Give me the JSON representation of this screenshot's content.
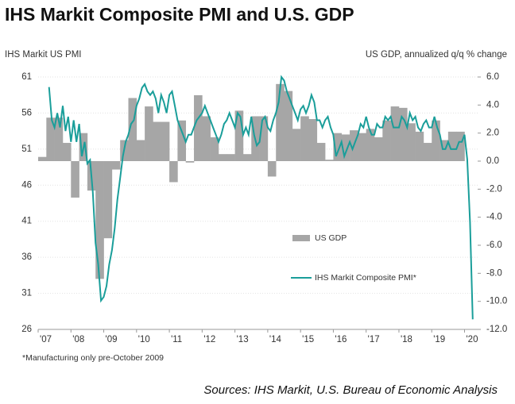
{
  "chart_data": {
    "type": "combo",
    "title": "IHS Markit Composite PMI and U.S. GDP",
    "y_label": "IHS Markit US PMI",
    "y2_label": "US GDP, annualized q/q % change",
    "footnote": "*Manufacturing only pre-October 2009",
    "source": "Sources: IHS Markit, U.S. Bureau of Economic Analysis",
    "xlim": [
      2007,
      2020.4
    ],
    "xticks": [
      {
        "value": 2007,
        "label": "'07"
      },
      {
        "value": 2008,
        "label": "'08"
      },
      {
        "value": 2009,
        "label": "'09"
      },
      {
        "value": 2010,
        "label": "'10"
      },
      {
        "value": 2011,
        "label": "'11"
      },
      {
        "value": 2012,
        "label": "'12"
      },
      {
        "value": 2013,
        "label": "'13"
      },
      {
        "value": 2014,
        "label": "'14"
      },
      {
        "value": 2015,
        "label": "'15"
      },
      {
        "value": 2016,
        "label": "'16"
      },
      {
        "value": 2017,
        "label": "'17"
      },
      {
        "value": 2018,
        "label": "'18"
      },
      {
        "value": 2019,
        "label": "'19"
      },
      {
        "value": 2020,
        "label": "'20"
      }
    ],
    "ylim": [
      26,
      61
    ],
    "yticks": [
      26,
      31,
      36,
      41,
      46,
      51,
      56,
      61
    ],
    "y2lim": [
      -12,
      6
    ],
    "y2ticks": [
      {
        "value": 6,
        "label": "6.0"
      },
      {
        "value": 4,
        "label": "4.0"
      },
      {
        "value": 2,
        "label": "2.0"
      },
      {
        "value": 0,
        "label": "0.0"
      },
      {
        "value": -2,
        "label": "-2.0"
      },
      {
        "value": -4,
        "label": "-4.0"
      },
      {
        "value": -6,
        "label": "-6.0"
      },
      {
        "value": -8,
        "label": "-8.0"
      },
      {
        "value": -10,
        "label": "-10.0"
      },
      {
        "value": -12,
        "label": "-12.0"
      }
    ],
    "bar_width": 0.25,
    "series": [
      {
        "name": "US GDP",
        "type": "bar",
        "axis": "y2",
        "color": "#a6a6a6",
        "x": [
          2007,
          2007.25,
          2007.5,
          2007.75,
          2008,
          2008.25,
          2008.5,
          2008.75,
          2009,
          2009.25,
          2009.5,
          2009.75,
          2010,
          2010.25,
          2010.5,
          2010.75,
          2011,
          2011.25,
          2011.5,
          2011.75,
          2012,
          2012.25,
          2012.5,
          2012.75,
          2013,
          2013.25,
          2013.5,
          2013.75,
          2014,
          2014.25,
          2014.5,
          2014.75,
          2015,
          2015.25,
          2015.5,
          2015.75,
          2016,
          2016.25,
          2016.5,
          2016.75,
          2017,
          2017.25,
          2017.5,
          2017.75,
          2018,
          2018.25,
          2018.5,
          2018.75,
          2019,
          2019.25,
          2019.5,
          2019.75
        ],
        "values": [
          0.3,
          3.1,
          3.1,
          1.3,
          -2.6,
          2.0,
          -2.1,
          -8.4,
          -5.5,
          -0.6,
          1.5,
          4.5,
          1.5,
          3.9,
          2.8,
          2.8,
          -1.5,
          2.9,
          -0.1,
          4.7,
          3.2,
          1.7,
          0.5,
          0.5,
          3.6,
          0.5,
          3.2,
          3.2,
          -1.1,
          5.5,
          5.0,
          2.3,
          3.2,
          3.0,
          1.3,
          0.1,
          2.0,
          1.9,
          2.2,
          2.0,
          2.3,
          1.7,
          2.9,
          3.9,
          3.8,
          2.7,
          2.1,
          1.3,
          2.9,
          1.5,
          2.1,
          2.1
        ]
      },
      {
        "name": "IHS Markit Composite PMI*",
        "type": "line",
        "color": "#1a9e9a",
        "x": [
          2007.333,
          2007.417,
          2007.5,
          2007.583,
          2007.667,
          2007.75,
          2007.833,
          2007.917,
          2008,
          2008.083,
          2008.167,
          2008.25,
          2008.333,
          2008.417,
          2008.5,
          2008.583,
          2008.667,
          2008.75,
          2008.833,
          2008.917,
          2009,
          2009.083,
          2009.167,
          2009.25,
          2009.333,
          2009.417,
          2009.5,
          2009.583,
          2009.667,
          2009.75,
          2009.833,
          2009.917,
          2010,
          2010.083,
          2010.167,
          2010.25,
          2010.333,
          2010.417,
          2010.5,
          2010.583,
          2010.667,
          2010.75,
          2010.833,
          2010.917,
          2011,
          2011.083,
          2011.167,
          2011.25,
          2011.333,
          2011.417,
          2011.5,
          2011.583,
          2011.667,
          2011.75,
          2011.833,
          2011.917,
          2012,
          2012.083,
          2012.167,
          2012.25,
          2012.333,
          2012.417,
          2012.5,
          2012.583,
          2012.667,
          2012.75,
          2012.833,
          2012.917,
          2013,
          2013.083,
          2013.167,
          2013.25,
          2013.333,
          2013.417,
          2013.5,
          2013.583,
          2013.667,
          2013.75,
          2013.833,
          2013.917,
          2014,
          2014.083,
          2014.167,
          2014.25,
          2014.333,
          2014.417,
          2014.5,
          2014.583,
          2014.667,
          2014.75,
          2014.833,
          2014.917,
          2015,
          2015.083,
          2015.167,
          2015.25,
          2015.333,
          2015.417,
          2015.5,
          2015.583,
          2015.667,
          2015.75,
          2015.833,
          2015.917,
          2016,
          2016.083,
          2016.167,
          2016.25,
          2016.333,
          2016.417,
          2016.5,
          2016.583,
          2016.667,
          2016.75,
          2016.833,
          2016.917,
          2017,
          2017.083,
          2017.167,
          2017.25,
          2017.333,
          2017.417,
          2017.5,
          2017.583,
          2017.667,
          2017.75,
          2017.833,
          2017.917,
          2018,
          2018.083,
          2018.167,
          2018.25,
          2018.333,
          2018.417,
          2018.5,
          2018.583,
          2018.667,
          2018.75,
          2018.833,
          2018.917,
          2019,
          2019.083,
          2019.167,
          2019.25,
          2019.333,
          2019.417,
          2019.5,
          2019.583,
          2019.667,
          2019.75,
          2019.833,
          2019.917,
          2020,
          2020.083,
          2020.167,
          2020.25
        ],
        "values": [
          59.6,
          55,
          54,
          56,
          54,
          57,
          53.5,
          55.5,
          52,
          55,
          52,
          54.5,
          50,
          52,
          49,
          49.5,
          45,
          38,
          35,
          30,
          30.5,
          32,
          35,
          37,
          40,
          44,
          47,
          50,
          52,
          53,
          54.5,
          55,
          57,
          58,
          59.5,
          60,
          59,
          58.5,
          59,
          58,
          56,
          58.5,
          57.5,
          56,
          58.5,
          59,
          57,
          55,
          54,
          53,
          52,
          53,
          53,
          54,
          55,
          55.5,
          56,
          57,
          56,
          55,
          54,
          53,
          52,
          53,
          54.5,
          55,
          56,
          55,
          54,
          56,
          55.5,
          53,
          54,
          53,
          55.5,
          53,
          51.5,
          52,
          55,
          55.5,
          54,
          53.5,
          55,
          56,
          57.5,
          61,
          60.5,
          59,
          58,
          57,
          56,
          55,
          56.5,
          57,
          56,
          57,
          58.5,
          57.5,
          55,
          55,
          54,
          55,
          55.5,
          54,
          53,
          50,
          51,
          52,
          50,
          51,
          52,
          51,
          52,
          53,
          54.5,
          54,
          55.5,
          54,
          53,
          53,
          54.5,
          54,
          54,
          55.5,
          55,
          55.5,
          54,
          54,
          54,
          55.5,
          55,
          54,
          56,
          55,
          55.5,
          54,
          53.5,
          54.5,
          55,
          54,
          54,
          55.5,
          54,
          53,
          51,
          51,
          52,
          51,
          51,
          51,
          52,
          52,
          53,
          49.6,
          40.9,
          27.4
        ]
      }
    ]
  }
}
